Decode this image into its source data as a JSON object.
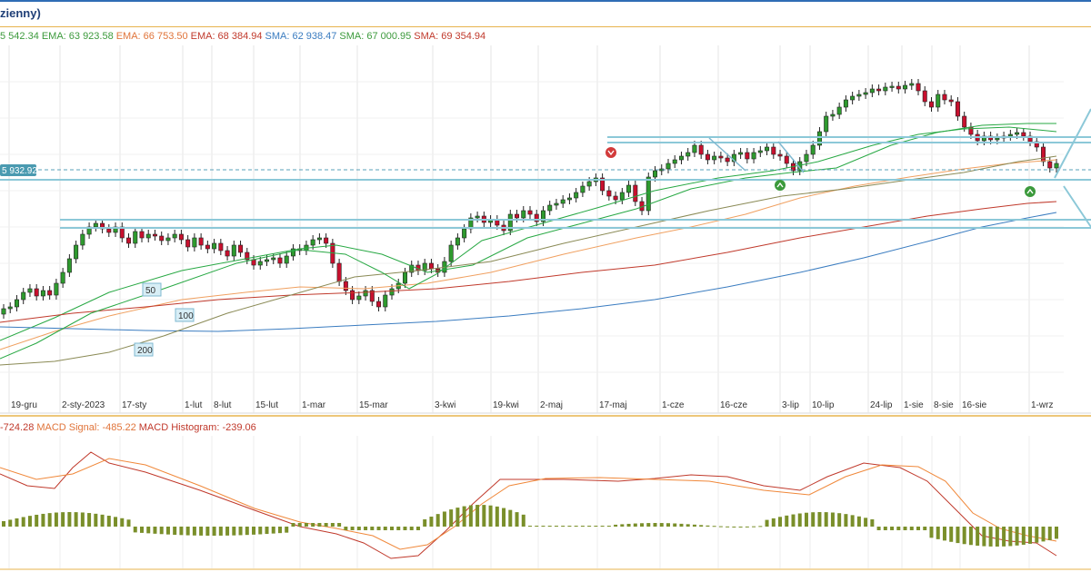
{
  "title": "zienny)",
  "legend": [
    {
      "text": "5 542.34",
      "color": "#3c9a3c"
    },
    {
      "text": "EMA: 63 923.58",
      "color": "#3c9a3c"
    },
    {
      "text": "EMA: 66 753.50",
      "color": "#e0743a"
    },
    {
      "text": "EMA: 68 384.94",
      "color": "#c0392b"
    },
    {
      "text": "SMA: 62 938.47",
      "color": "#3a7cc0"
    },
    {
      "text": "SMA: 67 000.95",
      "color": "#3c9a3c"
    },
    {
      "text": "SMA: 69 354.94",
      "color": "#c0392b"
    }
  ],
  "price_label": "5 932.92",
  "macd_legend": [
    {
      "text": "-724.28",
      "color": "#c0392b"
    },
    {
      "text": "MACD Signal: -485.22",
      "color": "#e0743a"
    },
    {
      "text": "MACD Histogram: -239.06",
      "color": "#c0392b"
    }
  ],
  "colors": {
    "up": "#2e9a2e",
    "down": "#c8102e",
    "ema_green": "#27a843",
    "ema_orange": "#f0a060",
    "ema_red": "#c0392b",
    "sma_blue": "#3a7cc0",
    "sma_olive": "#8a8a55",
    "hline": "#8cc8d8",
    "macd": "#c0392b",
    "signal": "#f0883a",
    "hist": "#7a8f2a"
  },
  "ma_labels": [
    "50",
    "100",
    "200"
  ],
  "chart_data": {
    "type": "candlestick",
    "x_ticks": [
      "19-gru",
      "2-sty-2023",
      "17-sty",
      "1-lut",
      "8-lut",
      "15-lut",
      "1-mar",
      "15-mar",
      "3-kwi",
      "19-kwi",
      "2-maj",
      "17-maj",
      "1-cze",
      "16-cze",
      "3-lip",
      "10-lip",
      "24-lip",
      "1-sie",
      "8-sie",
      "16-sie",
      "1-wrz"
    ],
    "price_level_marked": 65932.92
  }
}
